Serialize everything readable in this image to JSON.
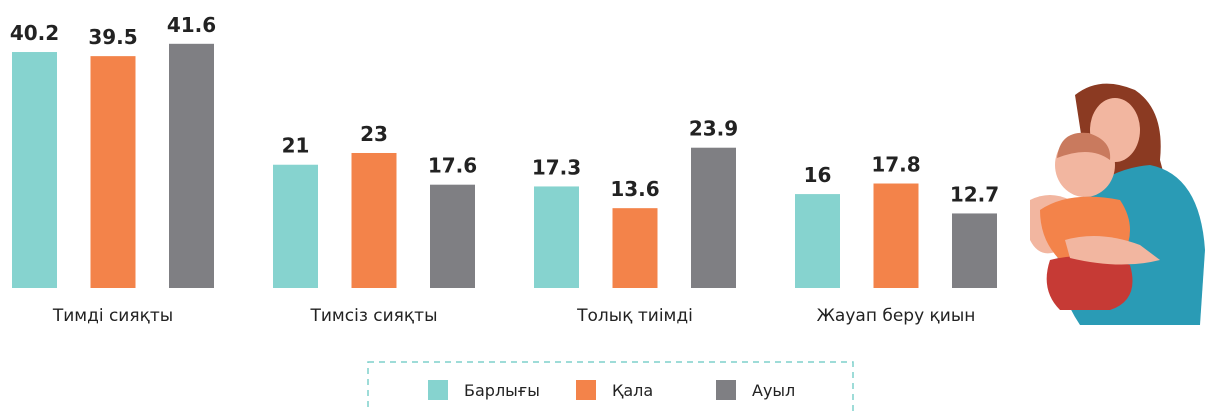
{
  "chart_data": {
    "type": "bar",
    "categories": [
      "Тимді сияқты",
      "Тимсіз сияқты",
      "Толық тиімді",
      "Жауап беру қиын"
    ],
    "series": [
      {
        "name": "Барлығы",
        "color": "#86d3cf",
        "values": [
          40.2,
          21,
          17.3,
          16
        ]
      },
      {
        "name": "Қала",
        "color": "#f3834a",
        "values": [
          39.5,
          23,
          13.6,
          17.8
        ]
      },
      {
        "name": "Ауыл",
        "color": "#7f7f83",
        "values": [
          41.6,
          17.6,
          23.9,
          12.7
        ]
      }
    ]
  }
}
